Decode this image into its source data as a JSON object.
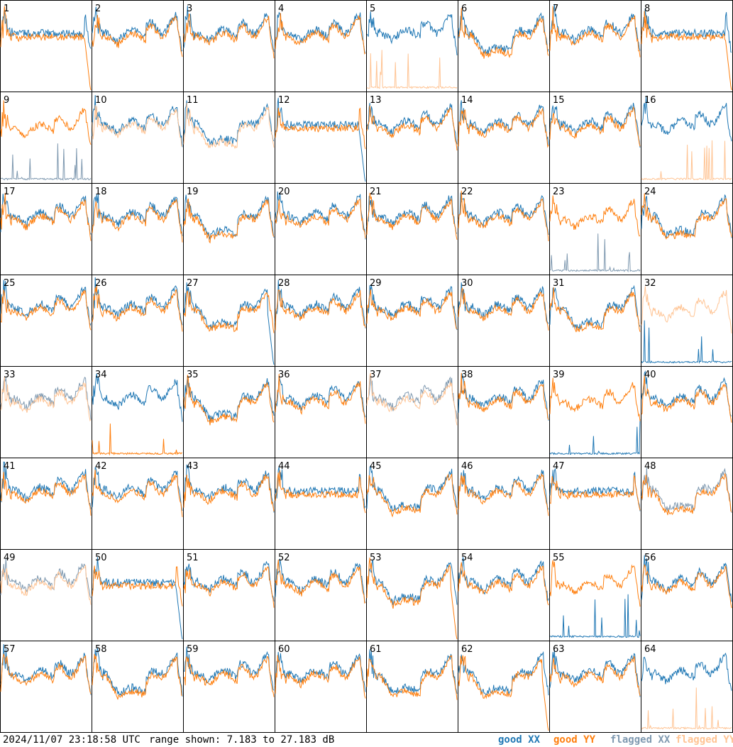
{
  "footer": {
    "timestamp": "2024/11/07 23:18:58 UTC",
    "range": "range shown: 7.183 to 27.183 dB"
  },
  "legend": [
    {
      "label": "good XX",
      "color": "#1f77b4"
    },
    {
      "label": "good YY",
      "color": "#ff7f0e"
    },
    {
      "label": "flagged XX",
      "color": "#7f99b0"
    },
    {
      "label": "flagged YY",
      "color": "#ffc494"
    }
  ],
  "chart_data": {
    "type": "line",
    "ylim": [
      7.183,
      27.183
    ],
    "layout": "8x8 grid of small multiples",
    "panels": [
      {
        "label": "1",
        "xx": "good",
        "yy": "good",
        "profile": "flat",
        "anomaly": "yy-drop"
      },
      {
        "label": "2",
        "xx": "good",
        "yy": "good",
        "profile": "normal",
        "anomaly": null
      },
      {
        "label": "3",
        "xx": "good",
        "yy": "good",
        "profile": "normal",
        "anomaly": null
      },
      {
        "label": "4",
        "xx": "good",
        "yy": "good",
        "profile": "normal",
        "anomaly": null
      },
      {
        "label": "5",
        "xx": "good",
        "yy": "flagged",
        "profile": "normal",
        "anomaly": "yy-low"
      },
      {
        "label": "6",
        "xx": "good",
        "yy": "good",
        "profile": "dip",
        "anomaly": null
      },
      {
        "label": "7",
        "xx": "good",
        "yy": "good",
        "profile": "normal",
        "anomaly": null
      },
      {
        "label": "8",
        "xx": "good",
        "yy": "good",
        "profile": "flat",
        "anomaly": "yy-drop"
      },
      {
        "label": "9",
        "xx": "flagged",
        "yy": "good",
        "profile": "normal",
        "anomaly": "xx-low"
      },
      {
        "label": "10",
        "xx": "good",
        "yy": "flagged",
        "profile": "normal",
        "anomaly": null
      },
      {
        "label": "11",
        "xx": "good",
        "yy": "flagged",
        "profile": "dip",
        "anomaly": null
      },
      {
        "label": "12",
        "xx": "good",
        "yy": "good",
        "profile": "flat",
        "anomaly": "xx-drop"
      },
      {
        "label": "13",
        "xx": "good",
        "yy": "good",
        "profile": "normal",
        "anomaly": null
      },
      {
        "label": "14",
        "xx": "good",
        "yy": "good",
        "profile": "normal",
        "anomaly": null
      },
      {
        "label": "15",
        "xx": "good",
        "yy": "good",
        "profile": "normal",
        "anomaly": null
      },
      {
        "label": "16",
        "xx": "good",
        "yy": "flagged",
        "profile": "normal",
        "anomaly": "yy-low"
      },
      {
        "label": "17",
        "xx": "good",
        "yy": "good",
        "profile": "normal",
        "anomaly": null
      },
      {
        "label": "18",
        "xx": "good",
        "yy": "good",
        "profile": "normal",
        "anomaly": null
      },
      {
        "label": "19",
        "xx": "good",
        "yy": "good",
        "profile": "dip",
        "anomaly": null
      },
      {
        "label": "20",
        "xx": "good",
        "yy": "good",
        "profile": "normal",
        "anomaly": null
      },
      {
        "label": "21",
        "xx": "good",
        "yy": "good",
        "profile": "normal",
        "anomaly": null
      },
      {
        "label": "22",
        "xx": "good",
        "yy": "good",
        "profile": "normal",
        "anomaly": null
      },
      {
        "label": "23",
        "xx": "flagged",
        "yy": "good",
        "profile": "normal",
        "anomaly": "xx-low"
      },
      {
        "label": "24",
        "xx": "good",
        "yy": "good",
        "profile": "dip",
        "anomaly": null
      },
      {
        "label": "25",
        "xx": "good",
        "yy": "good",
        "profile": "normal",
        "anomaly": null
      },
      {
        "label": "26",
        "xx": "good",
        "yy": "good",
        "profile": "normal",
        "anomaly": null
      },
      {
        "label": "27",
        "xx": "good",
        "yy": "good",
        "profile": "dip",
        "anomaly": "xx-drop"
      },
      {
        "label": "28",
        "xx": "good",
        "yy": "good",
        "profile": "normal",
        "anomaly": null
      },
      {
        "label": "29",
        "xx": "good",
        "yy": "good",
        "profile": "normal",
        "anomaly": null
      },
      {
        "label": "30",
        "xx": "good",
        "yy": "good",
        "profile": "normal",
        "anomaly": null
      },
      {
        "label": "31",
        "xx": "good",
        "yy": "good",
        "profile": "dip",
        "anomaly": null
      },
      {
        "label": "32",
        "xx": "good",
        "yy": "flagged",
        "profile": "normal",
        "anomaly": "xx-low"
      },
      {
        "label": "33",
        "xx": "flagged",
        "yy": "flagged",
        "profile": "normal",
        "anomaly": null
      },
      {
        "label": "34",
        "xx": "good",
        "yy": "good",
        "profile": "normal",
        "anomaly": "yy-low"
      },
      {
        "label": "35",
        "xx": "good",
        "yy": "good",
        "profile": "dip",
        "anomaly": null
      },
      {
        "label": "36",
        "xx": "good",
        "yy": "good",
        "profile": "normal",
        "anomaly": null
      },
      {
        "label": "37",
        "xx": "flagged",
        "yy": "flagged",
        "profile": "normal",
        "anomaly": null
      },
      {
        "label": "38",
        "xx": "good",
        "yy": "good",
        "profile": "normal",
        "anomaly": null
      },
      {
        "label": "39",
        "xx": "good",
        "yy": "good",
        "profile": "normal",
        "anomaly": "xx-low"
      },
      {
        "label": "40",
        "xx": "good",
        "yy": "good",
        "profile": "normal",
        "anomaly": null
      },
      {
        "label": "41",
        "xx": "good",
        "yy": "good",
        "profile": "normal",
        "anomaly": null
      },
      {
        "label": "42",
        "xx": "good",
        "yy": "good",
        "profile": "normal",
        "anomaly": null
      },
      {
        "label": "43",
        "xx": "good",
        "yy": "good",
        "profile": "normal",
        "anomaly": null
      },
      {
        "label": "44",
        "xx": "good",
        "yy": "good",
        "profile": "flat",
        "anomaly": null
      },
      {
        "label": "45",
        "xx": "good",
        "yy": "good",
        "profile": "dip",
        "anomaly": null
      },
      {
        "label": "46",
        "xx": "good",
        "yy": "good",
        "profile": "normal",
        "anomaly": null
      },
      {
        "label": "47",
        "xx": "good",
        "yy": "good",
        "profile": "flat",
        "anomaly": null
      },
      {
        "label": "48",
        "xx": "flagged",
        "yy": "good",
        "profile": "dip",
        "anomaly": null
      },
      {
        "label": "49",
        "xx": "flagged",
        "yy": "flagged",
        "profile": "normal",
        "anomaly": null
      },
      {
        "label": "50",
        "xx": "good",
        "yy": "good",
        "profile": "flat",
        "anomaly": "xx-drop"
      },
      {
        "label": "51",
        "xx": "good",
        "yy": "good",
        "profile": "normal",
        "anomaly": null
      },
      {
        "label": "52",
        "xx": "good",
        "yy": "good",
        "profile": "normal",
        "anomaly": null
      },
      {
        "label": "53",
        "xx": "good",
        "yy": "good",
        "profile": "dip",
        "anomaly": "yy-drop"
      },
      {
        "label": "54",
        "xx": "good",
        "yy": "good",
        "profile": "normal",
        "anomaly": null
      },
      {
        "label": "55",
        "xx": "good",
        "yy": "good",
        "profile": "normal",
        "anomaly": "xx-low"
      },
      {
        "label": "56",
        "xx": "good",
        "yy": "good",
        "profile": "normal",
        "anomaly": null
      },
      {
        "label": "57",
        "xx": "good",
        "yy": "good",
        "profile": "normal",
        "anomaly": null
      },
      {
        "label": "58",
        "xx": "good",
        "yy": "good",
        "profile": "dip",
        "anomaly": null
      },
      {
        "label": "59",
        "xx": "good",
        "yy": "good",
        "profile": "normal",
        "anomaly": null
      },
      {
        "label": "60",
        "xx": "good",
        "yy": "good",
        "profile": "normal",
        "anomaly": null
      },
      {
        "label": "61",
        "xx": "good",
        "yy": "good",
        "profile": "dip",
        "anomaly": null
      },
      {
        "label": "62",
        "xx": "good",
        "yy": "good",
        "profile": "dip",
        "anomaly": "yy-drop"
      },
      {
        "label": "63",
        "xx": "good",
        "yy": "good",
        "profile": "normal",
        "anomaly": null
      },
      {
        "label": "64",
        "xx": "good",
        "yy": "flagged",
        "profile": "normal",
        "anomaly": "yy-low"
      }
    ]
  }
}
